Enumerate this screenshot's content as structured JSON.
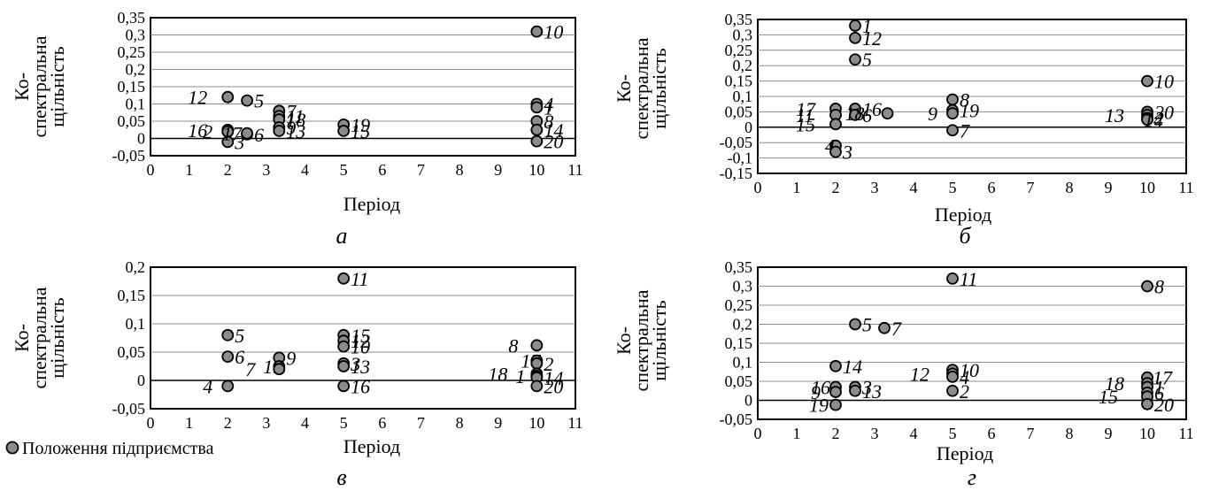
{
  "legend": {
    "label": "Положення підприємства"
  },
  "chart_data": [
    {
      "panel": "а",
      "type": "scatter",
      "xlabel": "Період",
      "ylabel": [
        "Ко-",
        "спектральна",
        "щільність"
      ],
      "xlim": [
        0,
        11
      ],
      "ylim": [
        -0.05,
        0.35
      ],
      "xticks": [
        "0",
        "1",
        "2",
        "3",
        "4",
        "5",
        "6",
        "7",
        "8",
        "9",
        "10",
        "11"
      ],
      "yticks": [
        "-0,05",
        "0",
        "0,05",
        "0,1",
        "0,15",
        "0,2",
        "0,25",
        "0,3",
        "0,35"
      ],
      "points": [
        {
          "x": 2,
          "y": 0.12,
          "label": "12"
        },
        {
          "x": 2,
          "y": 0.025,
          "label": "16"
        },
        {
          "x": 2,
          "y": 0.02,
          "label": "2"
        },
        {
          "x": 2,
          "y": -0.01,
          "label": "3"
        },
        {
          "x": 2.5,
          "y": 0.11,
          "label": "5"
        },
        {
          "x": 2.5,
          "y": 0.012,
          "label": "6"
        },
        {
          "x": 2.5,
          "y": 0.015,
          "label": "17"
        },
        {
          "x": 3.33,
          "y": 0.08,
          "label": "7"
        },
        {
          "x": 3.33,
          "y": 0.065,
          "label": "11"
        },
        {
          "x": 3.33,
          "y": 0.055,
          "label": "18"
        },
        {
          "x": 3.33,
          "y": 0.032,
          "label": "9"
        },
        {
          "x": 3.33,
          "y": 0.022,
          "label": "13"
        },
        {
          "x": 5,
          "y": 0.04,
          "label": "19"
        },
        {
          "x": 5,
          "y": 0.022,
          "label": "15"
        },
        {
          "x": 10,
          "y": 0.31,
          "label": "10"
        },
        {
          "x": 10,
          "y": 0.1,
          "label": "4"
        },
        {
          "x": 10,
          "y": 0.09,
          "label": "1"
        },
        {
          "x": 10,
          "y": 0.05,
          "label": "8"
        },
        {
          "x": 10,
          "y": 0.025,
          "label": "14"
        },
        {
          "x": 10,
          "y": -0.008,
          "label": "20"
        }
      ]
    },
    {
      "panel": "б",
      "type": "scatter",
      "xlabel": "Період",
      "ylabel": [
        "Ко-",
        "спектральна",
        "щільність"
      ],
      "xlim": [
        0,
        11
      ],
      "ylim": [
        -0.15,
        0.35
      ],
      "xticks": [
        "0",
        "1",
        "2",
        "3",
        "4",
        "5",
        "6",
        "7",
        "8",
        "9",
        "10",
        "11"
      ],
      "yticks": [
        "-0,15",
        "-0,1",
        "-0,05",
        "0",
        "0,05",
        "0,1",
        "0,15",
        "0,2",
        "0,25",
        "0,3",
        "0,35"
      ],
      "points": [
        {
          "x": 2,
          "y": 0.06,
          "label": "17"
        },
        {
          "x": 2,
          "y": 0.04,
          "label": "11"
        },
        {
          "x": 2,
          "y": 0.01,
          "label": "15"
        },
        {
          "x": 2,
          "y": -0.06,
          "label": "4"
        },
        {
          "x": 2,
          "y": -0.08,
          "label": "3"
        },
        {
          "x": 2.5,
          "y": 0.33,
          "label": "1"
        },
        {
          "x": 2.5,
          "y": 0.29,
          "label": "12"
        },
        {
          "x": 2.5,
          "y": 0.22,
          "label": "5"
        },
        {
          "x": 2.5,
          "y": 0.06,
          "label": "16"
        },
        {
          "x": 2.5,
          "y": 0.04,
          "label": "6"
        },
        {
          "x": 3.33,
          "y": 0.045,
          "label": "18"
        },
        {
          "x": 5,
          "y": 0.09,
          "label": "8"
        },
        {
          "x": 5,
          "y": 0.055,
          "label": "19"
        },
        {
          "x": 5,
          "y": 0.045,
          "label": "9"
        },
        {
          "x": 5,
          "y": -0.01,
          "label": "7"
        },
        {
          "x": 10,
          "y": 0.15,
          "label": "10"
        },
        {
          "x": 10,
          "y": 0.05,
          "label": "20"
        },
        {
          "x": 10,
          "y": 0.04,
          "label": "13"
        },
        {
          "x": 10,
          "y": 0.03,
          "label": "2"
        },
        {
          "x": 10,
          "y": 0.025,
          "label": "14"
        }
      ]
    },
    {
      "panel": "в",
      "type": "scatter",
      "xlabel": "Період",
      "ylabel": [
        "Ко-",
        "спектральна",
        "щільність"
      ],
      "xlim": [
        0,
        11
      ],
      "ylim": [
        -0.05,
        0.2
      ],
      "xticks": [
        "0",
        "1",
        "2",
        "3",
        "4",
        "5",
        "6",
        "7",
        "8",
        "9",
        "10",
        "11"
      ],
      "yticks": [
        "-0,05",
        "0",
        "0,05",
        "0,1",
        "0,15",
        "0,2"
      ],
      "points": [
        {
          "x": 2,
          "y": 0.08,
          "label": "5"
        },
        {
          "x": 2,
          "y": 0.042,
          "label": "6"
        },
        {
          "x": 2,
          "y": -0.01,
          "label": "4"
        },
        {
          "x": 3.33,
          "y": 0.04,
          "label": "9"
        },
        {
          "x": 3.33,
          "y": 0.025,
          "label": "19"
        },
        {
          "x": 3.33,
          "y": 0.02,
          "label": "7"
        },
        {
          "x": 5,
          "y": 0.18,
          "label": "11"
        },
        {
          "x": 5,
          "y": 0.08,
          "label": "15"
        },
        {
          "x": 5,
          "y": 0.07,
          "label": "12"
        },
        {
          "x": 5,
          "y": 0.06,
          "label": "10"
        },
        {
          "x": 5,
          "y": 0.03,
          "label": "3"
        },
        {
          "x": 5,
          "y": 0.025,
          "label": "13"
        },
        {
          "x": 5,
          "y": -0.01,
          "label": "16"
        },
        {
          "x": 10,
          "y": 0.062,
          "label": "8"
        },
        {
          "x": 10,
          "y": 0.035,
          "label": "17"
        },
        {
          "x": 10,
          "y": 0.03,
          "label": "2"
        },
        {
          "x": 10,
          "y": 0.012,
          "label": "18"
        },
        {
          "x": 10,
          "y": 0.008,
          "label": "1"
        },
        {
          "x": 10,
          "y": 0.005,
          "label": "14"
        },
        {
          "x": 10,
          "y": -0.01,
          "label": "20"
        }
      ]
    },
    {
      "panel": "г",
      "type": "scatter",
      "xlabel": "Період",
      "ylabel": [
        "Ко-",
        "спектральна",
        "щільність"
      ],
      "xlim": [
        0,
        11
      ],
      "ylim": [
        -0.05,
        0.35
      ],
      "xticks": [
        "0",
        "1",
        "2",
        "3",
        "4",
        "5",
        "6",
        "7",
        "8",
        "9",
        "10",
        "11"
      ],
      "yticks": [
        "-0,05",
        "0",
        "0,05",
        "0,1",
        "0,15",
        "0,2",
        "0,25",
        "0,3",
        "0,35"
      ],
      "points": [
        {
          "x": 2,
          "y": 0.09,
          "label": "14"
        },
        {
          "x": 2,
          "y": 0.035,
          "label": "16"
        },
        {
          "x": 2,
          "y": 0.022,
          "label": "9"
        },
        {
          "x": 2,
          "y": -0.012,
          "label": "19"
        },
        {
          "x": 2.5,
          "y": 0.2,
          "label": "5"
        },
        {
          "x": 2.5,
          "y": 0.035,
          "label": "3"
        },
        {
          "x": 2.5,
          "y": 0.025,
          "label": "13"
        },
        {
          "x": 3.25,
          "y": 0.19,
          "label": "7"
        },
        {
          "x": 5,
          "y": 0.32,
          "label": "11"
        },
        {
          "x": 5,
          "y": 0.08,
          "label": "10"
        },
        {
          "x": 5,
          "y": 0.07,
          "label": "12"
        },
        {
          "x": 5,
          "y": 0.062,
          "label": "4"
        },
        {
          "x": 5,
          "y": 0.025,
          "label": "2"
        },
        {
          "x": 10,
          "y": 0.3,
          "label": "8"
        },
        {
          "x": 10,
          "y": 0.06,
          "label": "17"
        },
        {
          "x": 10,
          "y": 0.045,
          "label": "18"
        },
        {
          "x": 10,
          "y": 0.035,
          "label": "1"
        },
        {
          "x": 10,
          "y": 0.02,
          "label": "6"
        },
        {
          "x": 10,
          "y": 0.01,
          "label": "15"
        },
        {
          "x": 10,
          "y": -0.01,
          "label": "20"
        }
      ]
    }
  ]
}
